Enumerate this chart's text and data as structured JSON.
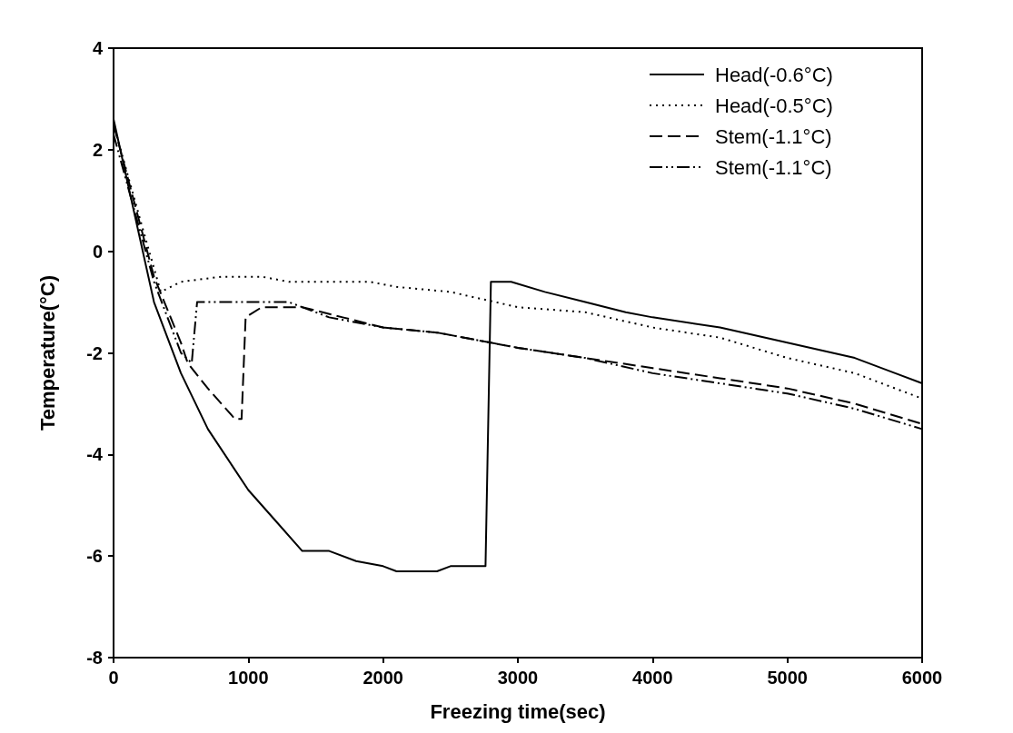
{
  "chart_data": {
    "type": "line",
    "xlabel": "Freezing time(sec)",
    "ylabel": "Temperature(°C)",
    "xlim": [
      0,
      6000
    ],
    "xticks": [
      0,
      1000,
      2000,
      3000,
      4000,
      5000,
      6000
    ],
    "ylim": [
      -8,
      4
    ],
    "yticks": [
      -8,
      -6,
      -4,
      -2,
      0,
      2,
      4
    ],
    "grid": false,
    "legend": "top right",
    "marker": "none",
    "series": [
      {
        "name": "Head(-0.6°C)",
        "color": "#000000",
        "line_style": "solid",
        "x": [
          0,
          300,
          500,
          700,
          1000,
          1200,
          1400,
          1600,
          1800,
          2000,
          2100,
          2400,
          2500,
          2760,
          2800,
          2950,
          3200,
          3500,
          3800,
          4000,
          4500,
          5000,
          5500,
          5800,
          6000
        ],
        "values": [
          2.6,
          -1.0,
          -2.4,
          -3.5,
          -4.7,
          -5.3,
          -5.9,
          -5.9,
          -6.1,
          -6.2,
          -6.3,
          -6.3,
          -6.2,
          -6.2,
          -0.6,
          -0.6,
          -0.8,
          -1.0,
          -1.2,
          -1.3,
          -1.5,
          -1.8,
          -2.1,
          -2.4,
          -2.6
        ]
      },
      {
        "name": "Head(-0.5°C)",
        "color": "#000000",
        "line_style": "dotted",
        "x": [
          0,
          200,
          350,
          500,
          800,
          1100,
          1300,
          1900,
          2100,
          2500,
          3000,
          3500,
          4000,
          4500,
          5000,
          5500,
          6000
        ],
        "values": [
          2.5,
          0.6,
          -0.8,
          -0.6,
          -0.5,
          -0.5,
          -0.6,
          -0.6,
          -0.7,
          -0.8,
          -1.1,
          -1.2,
          -1.5,
          -1.7,
          -2.1,
          -2.4,
          -2.9
        ]
      },
      {
        "name": "Stem(-1.1°C)",
        "color": "#000000",
        "line_style": "dashed",
        "x": [
          0,
          300,
          500,
          550,
          700,
          900,
          950,
          980,
          1100,
          1400,
          1700,
          2000,
          2400,
          2800,
          3000,
          3500,
          4000,
          4500,
          5000,
          5500,
          6000
        ],
        "values": [
          2.5,
          -0.5,
          -1.8,
          -2.2,
          -2.7,
          -3.3,
          -3.3,
          -1.3,
          -1.1,
          -1.1,
          -1.3,
          -1.5,
          -1.6,
          -1.8,
          -1.9,
          -2.1,
          -2.3,
          -2.5,
          -2.7,
          -3.0,
          -3.4
        ]
      },
      {
        "name": "Stem(-1.1°C)",
        "color": "#000000",
        "line_style": "dashdot",
        "x": [
          0,
          300,
          500,
          580,
          620,
          1000,
          1300,
          1600,
          2000,
          2400,
          2800,
          3000,
          3500,
          4000,
          4500,
          5000,
          5500,
          6000
        ],
        "values": [
          2.3,
          -0.6,
          -2.0,
          -2.2,
          -1.0,
          -1.0,
          -1.0,
          -1.3,
          -1.5,
          -1.6,
          -1.8,
          -1.9,
          -2.1,
          -2.4,
          -2.6,
          -2.8,
          -3.1,
          -3.5
        ]
      }
    ]
  }
}
